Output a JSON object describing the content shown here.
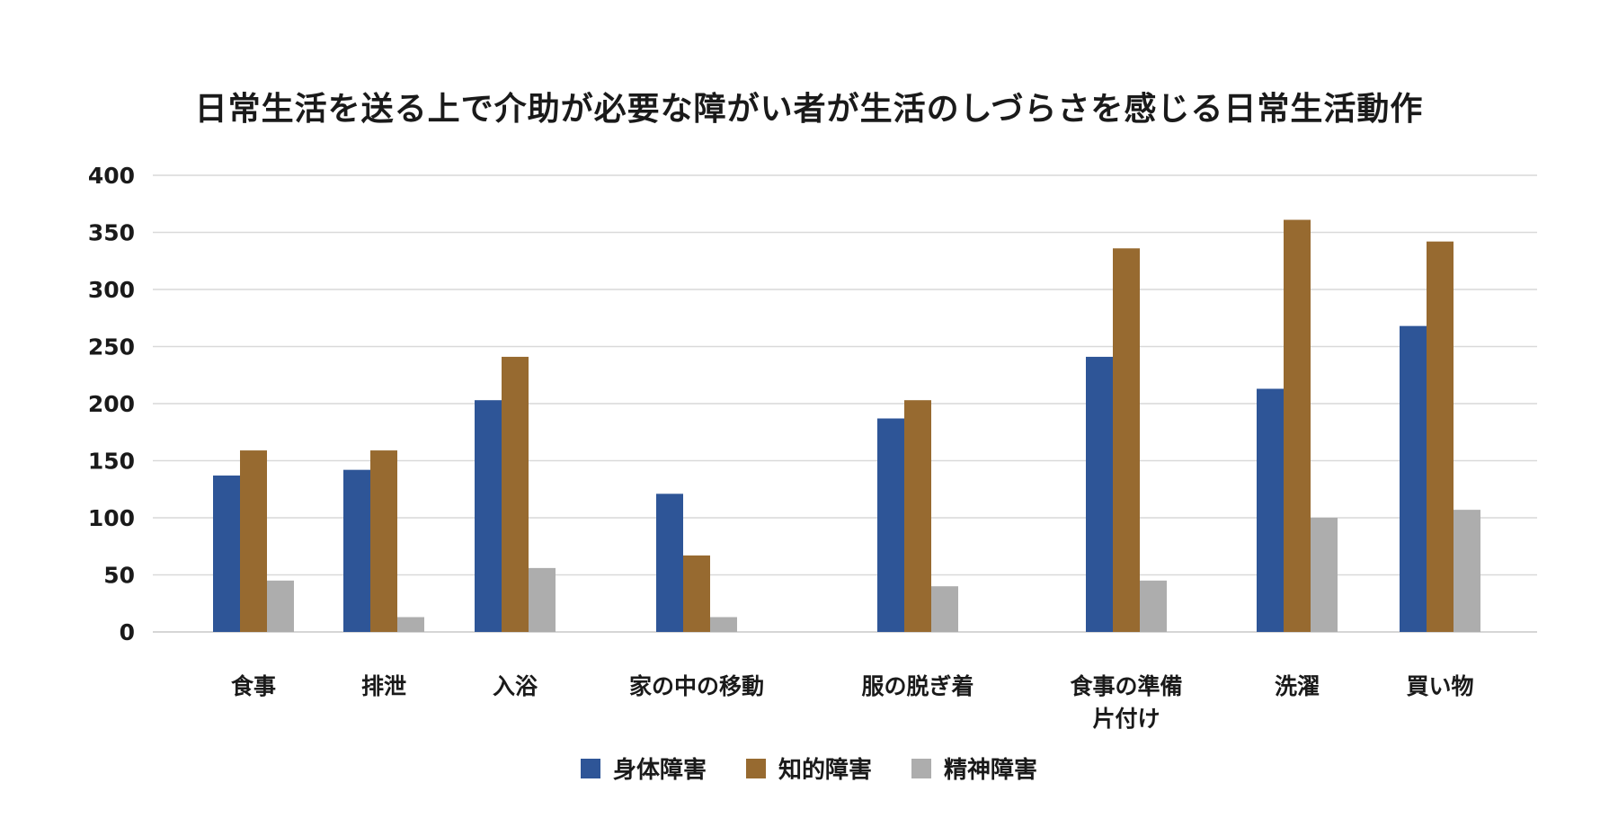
{
  "chart_data": {
    "type": "bar",
    "title": "日常生活を送る上で介助が必要な障がい者が生活のしづらさを感じる日常生活動作",
    "categories": [
      "食事",
      "排泄",
      "入浴",
      "家の中の移動",
      "服の脱ぎ着",
      "食事の準備\n片付け",
      "洗濯",
      "買い物"
    ],
    "series": [
      {
        "name": "身体障害",
        "color": "#2e5597",
        "values": [
          137,
          142,
          203,
          121,
          187,
          241,
          213,
          268
        ]
      },
      {
        "name": "知的障害",
        "color": "#976a30",
        "values": [
          159,
          159,
          241,
          67,
          203,
          336,
          361,
          342
        ]
      },
      {
        "name": "精神障害",
        "color": "#adadad",
        "values": [
          45,
          13,
          56,
          13,
          40,
          45,
          100,
          107
        ]
      }
    ],
    "ylim": [
      0,
      400
    ],
    "yticks": [
      0,
      50,
      100,
      150,
      200,
      250,
      300,
      350,
      400
    ],
    "grid": true,
    "legend_position": "bottom"
  }
}
